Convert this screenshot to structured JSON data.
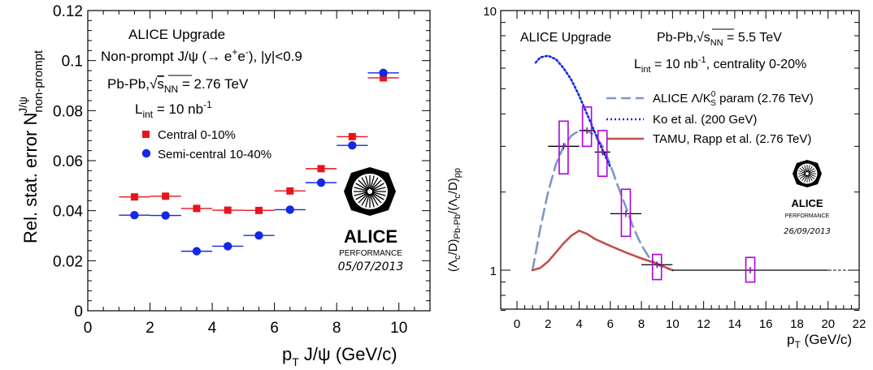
{
  "chart_data": [
    {
      "type": "scatter",
      "xlabel": "p_T J/ψ (GeV/c)",
      "ylabel": "Rel. stat. error N^{J/ψ}_{non-prompt}",
      "xlim": [
        0,
        11
      ],
      "ylim": [
        0,
        0.12
      ],
      "x_ticks": [
        "0",
        "2",
        "4",
        "6",
        "8",
        "10"
      ],
      "y_ticks": [
        "0",
        "0.02",
        "0.04",
        "0.06",
        "0.08",
        "0.1",
        "0.12"
      ],
      "annotations": {
        "line1": "ALICE Upgrade",
        "line2": "Non-prompt J/ψ (→ e⁺e⁻), |y|<0.9",
        "line3": "Pb-Pb, √sNN = 2.76 TeV",
        "line4": "Lint = 10 nb⁻¹"
      },
      "logo": {
        "name": "ALICE",
        "sub": "PERFORMANCE",
        "date": "05/07/2013"
      },
      "series": [
        {
          "name": "Central 0-10%",
          "color": "#e8141c",
          "marker": "square",
          "x": [
            1.5,
            2.5,
            3.5,
            4.5,
            5.5,
            6.5,
            7.5,
            8.5,
            9.5
          ],
          "y": [
            0.0455,
            0.0458,
            0.0409,
            0.0402,
            0.0401,
            0.0479,
            0.0568,
            0.0696,
            0.0931
          ],
          "xerr": 0.5
        },
        {
          "name": "Semi-central 10-40%",
          "color": "#1428e6",
          "marker": "circle",
          "x": [
            1.5,
            2.5,
            3.5,
            4.5,
            5.5,
            6.5,
            7.5,
            8.5,
            9.5
          ],
          "y": [
            0.0382,
            0.0381,
            0.0238,
            0.0258,
            0.0301,
            0.0404,
            0.0512,
            0.0661,
            0.0951
          ],
          "xerr": 0.5
        }
      ]
    },
    {
      "type": "line",
      "xlabel": "p_T (GeV/c)",
      "ylabel": "(Λc/D)_{Pb-Pb}/(Λc/D)_{pp}",
      "xlim": [
        0,
        22
      ],
      "ylim": [
        0.7,
        10
      ],
      "yscale": "log",
      "x_ticks": [
        "0",
        "2",
        "4",
        "6",
        "8",
        "10",
        "12",
        "14",
        "16",
        "18",
        "20",
        "22"
      ],
      "y_ticks": [
        "1",
        "10"
      ],
      "annotations": {
        "title": "ALICE Upgrade",
        "system": "Pb-Pb, √sNN = 5.5 TeV",
        "lumi": "Lint = 10 nb⁻¹, centrality 0-20%"
      },
      "logo": {
        "name": "ALICE",
        "sub": "PERFORMANCE",
        "date": "26/09/2013"
      },
      "series": [
        {
          "name": "ALICE Λ/K⁰S param (2.76 TeV)",
          "color": "#7a9ac8",
          "style": "dashed",
          "x": [
            1,
            1.5,
            2,
            2.5,
            3,
            3.5,
            4,
            4.5,
            5,
            5.5,
            6,
            6.5,
            7,
            7.5,
            8,
            8.5,
            9,
            9.5,
            10
          ],
          "y": [
            1.0,
            1.45,
            2.0,
            2.55,
            3.0,
            3.3,
            3.45,
            3.45,
            3.3,
            3.0,
            2.55,
            2.1,
            1.75,
            1.45,
            1.25,
            1.12,
            1.05,
            1.02,
            1.0
          ]
        },
        {
          "name": "Ko et al. (200 GeV)",
          "color": "#1428e6",
          "style": "dotted",
          "x": [
            1.2,
            1.5,
            2,
            2.5,
            3,
            3.5,
            4,
            4.5,
            5,
            5.5,
            6
          ],
          "y": [
            6.3,
            6.6,
            6.7,
            6.5,
            6.0,
            5.4,
            4.7,
            4.0,
            3.4,
            2.9,
            2.5
          ]
        },
        {
          "name": "TAMU, Rapp et al. (2.76 TeV)",
          "color": "#c0504d",
          "style": "solid",
          "x": [
            1,
            1.5,
            2,
            2.5,
            3,
            3.5,
            4,
            4.5,
            5,
            6,
            7,
            8,
            9,
            10
          ],
          "y": [
            1.0,
            1.02,
            1.08,
            1.17,
            1.27,
            1.36,
            1.42,
            1.38,
            1.32,
            1.24,
            1.17,
            1.11,
            1.06,
            1.0
          ]
        },
        {
          "name": "",
          "color": "#000000",
          "style": "dashed-thin",
          "x": [
            10,
            22
          ],
          "y": [
            1.0,
            1.0
          ]
        }
      ],
      "points": {
        "color": "#b000e0",
        "x": [
          3,
          4.5,
          5.5,
          7,
          9,
          15
        ],
        "y": [
          3.0,
          3.45,
          2.85,
          1.65,
          1.05,
          1.0
        ],
        "x_low": [
          2,
          4,
          5,
          6,
          8,
          10
        ],
        "x_high": [
          4,
          5,
          6,
          8,
          10,
          20
        ],
        "sys_low": [
          2.35,
          3.0,
          2.3,
          1.35,
          0.92,
          0.9
        ],
        "sys_high": [
          3.75,
          4.25,
          3.45,
          2.05,
          1.15,
          1.12
        ]
      }
    }
  ]
}
